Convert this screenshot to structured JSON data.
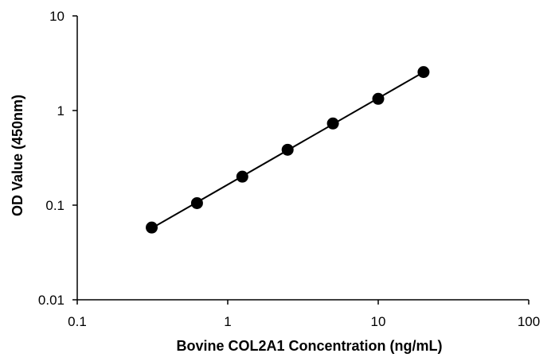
{
  "chart_data": {
    "type": "scatter",
    "title": "",
    "xlabel": "Bovine COL2A1 Concentration (ng/mL)",
    "ylabel": "OD Value (450nm)",
    "x_scale": "log",
    "y_scale": "log",
    "xlim": [
      0.1,
      100
    ],
    "ylim": [
      0.01,
      10
    ],
    "x_ticks": [
      "0.1",
      "1",
      "10",
      "100"
    ],
    "y_ticks": [
      "0.01",
      "0.1",
      "1",
      "10"
    ],
    "grid": false,
    "legend": "none",
    "series": [
      {
        "x": [
          0.3125,
          0.625,
          1.25,
          2.5,
          5,
          10,
          20
        ],
        "y": [
          0.058,
          0.105,
          0.2,
          0.385,
          0.73,
          1.33,
          2.55
        ],
        "color": "#000000",
        "marker": "circle",
        "line": "fit"
      }
    ]
  }
}
